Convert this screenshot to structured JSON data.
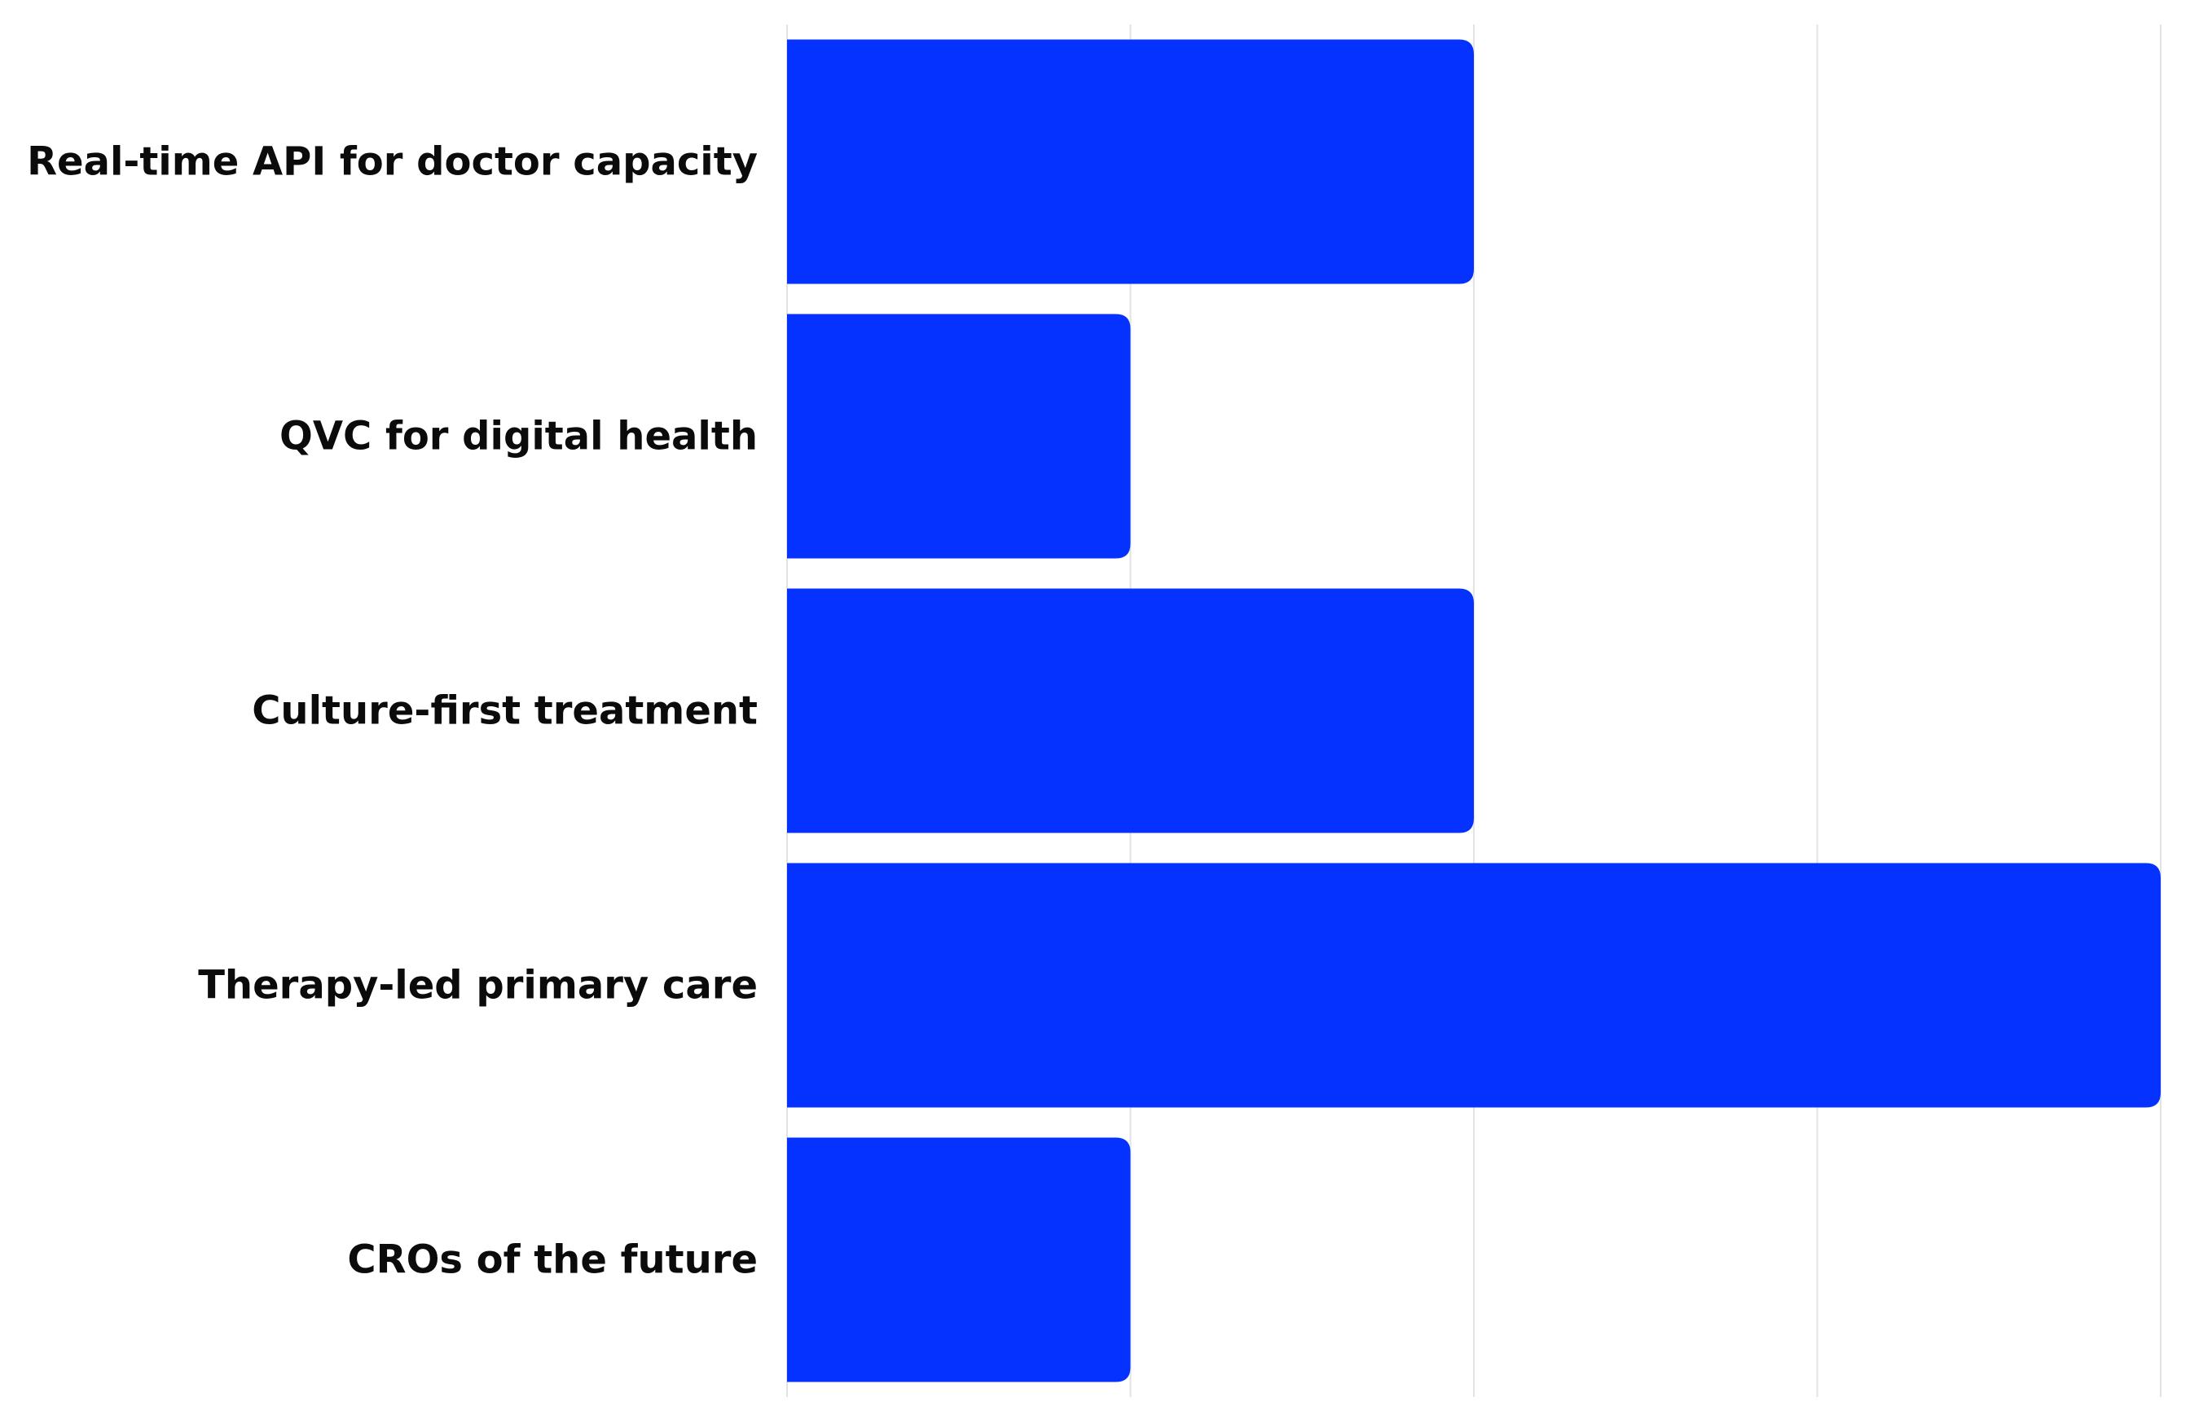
{
  "chart_data": {
    "type": "bar",
    "orientation": "horizontal",
    "categories": [
      "Real-time API for doctor capacity",
      "QVC for digital health",
      "Culture-first treatment",
      "Therapy-led primary care",
      "CROs of the future"
    ],
    "values": [
      2,
      1,
      2,
      4,
      1
    ],
    "xlim": [
      0,
      4
    ],
    "grid": true,
    "grid_axis": "x",
    "legend": "none",
    "title": "",
    "xlabel": "",
    "ylabel": "",
    "colors": {
      "bar": "#0532ff",
      "gridline": "#e3e3e3",
      "label": "#0b0b0b",
      "background": "#ffffff"
    }
  }
}
